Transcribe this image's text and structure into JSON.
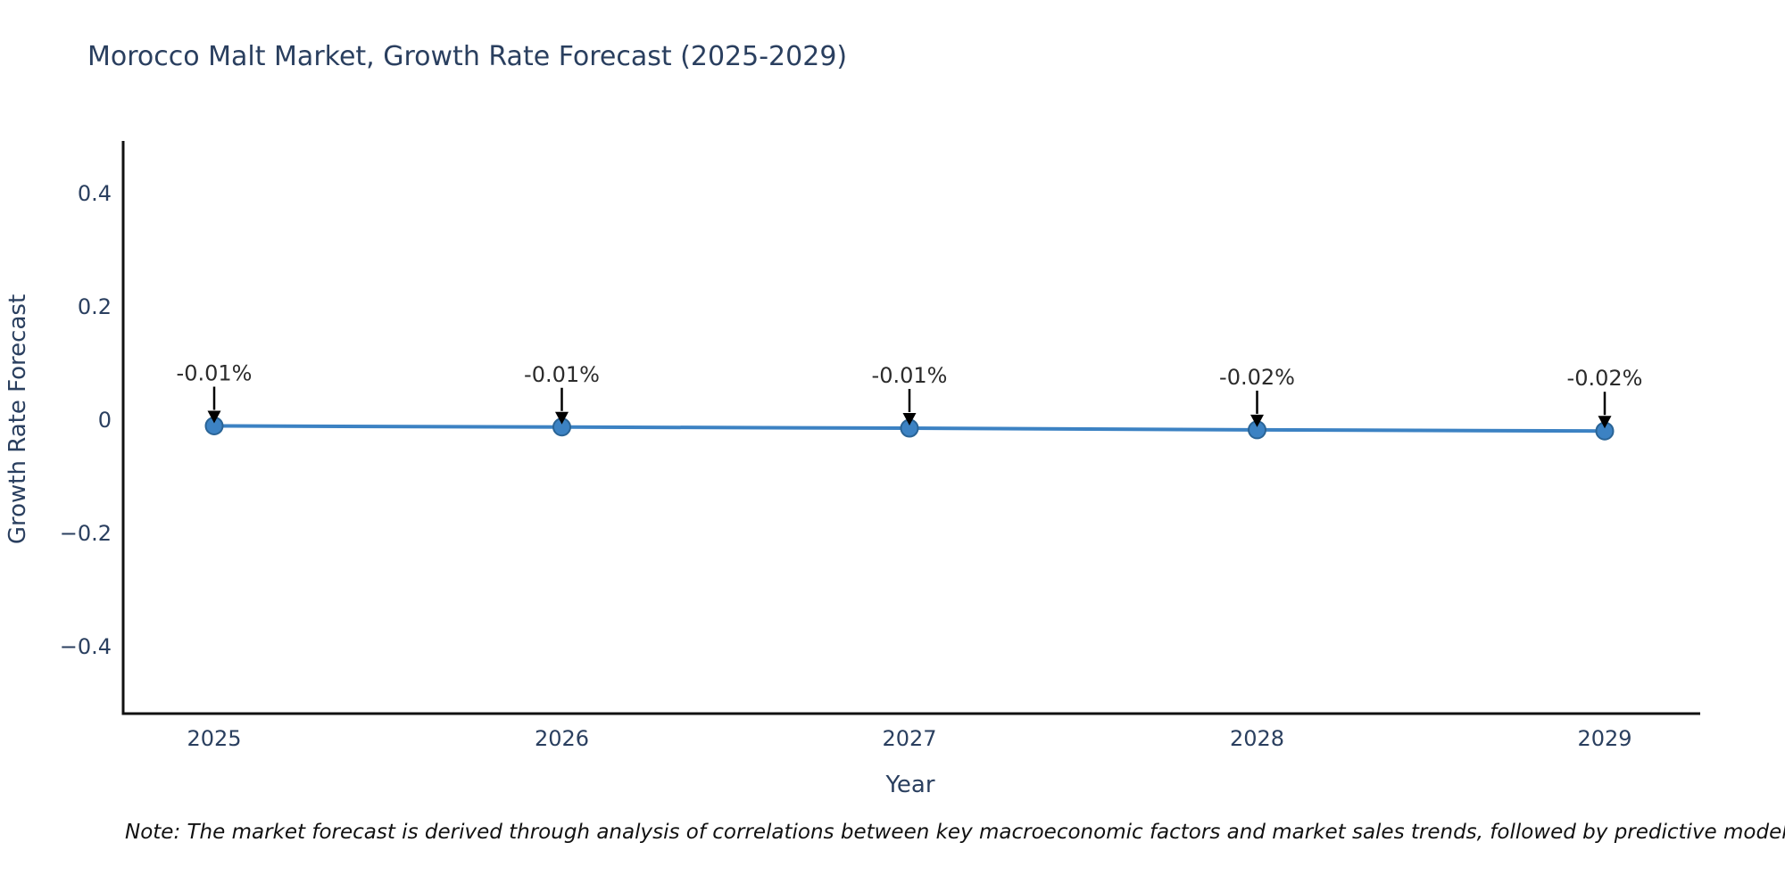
{
  "chart": {
    "background": "#ffffff"
  },
  "chart_data": {
    "type": "line",
    "title": "Morocco Malt Market, Growth Rate Forecast (2025-2029)",
    "xlabel": "Year",
    "ylabel": "Growth Rate Forecast",
    "note": "Note: The market forecast is derived through analysis of correlations between key macroeconomic factors and market sales trends, followed by predictive modeling to project future sales",
    "categories": [
      "2025",
      "2026",
      "2027",
      "2028",
      "2029"
    ],
    "values": [
      -0.011,
      -0.013,
      -0.015,
      -0.018,
      -0.02
    ],
    "labels": [
      "-0.01%",
      "-0.01%",
      "-0.01%",
      "-0.02%",
      "-0.02%"
    ],
    "yticks": [
      {
        "value": 0.4,
        "label": "0.4"
      },
      {
        "value": 0.2,
        "label": "0.2"
      },
      {
        "value": 0,
        "label": "0"
      },
      {
        "value": -0.2,
        "label": "−0.2"
      },
      {
        "value": -0.4,
        "label": "−0.4"
      }
    ],
    "ylim": [
      -0.52,
      0.49
    ],
    "grid": false,
    "legend": false,
    "annotation_arrows": true,
    "colors": {
      "line": "#3c82c3",
      "marker": "#3c82c3",
      "marker_edge": "#2a6496",
      "axis": "#111111",
      "tick_text": "#2a3f5f",
      "annotation_text": "#2b2b2b",
      "note_text": "#111111"
    }
  }
}
